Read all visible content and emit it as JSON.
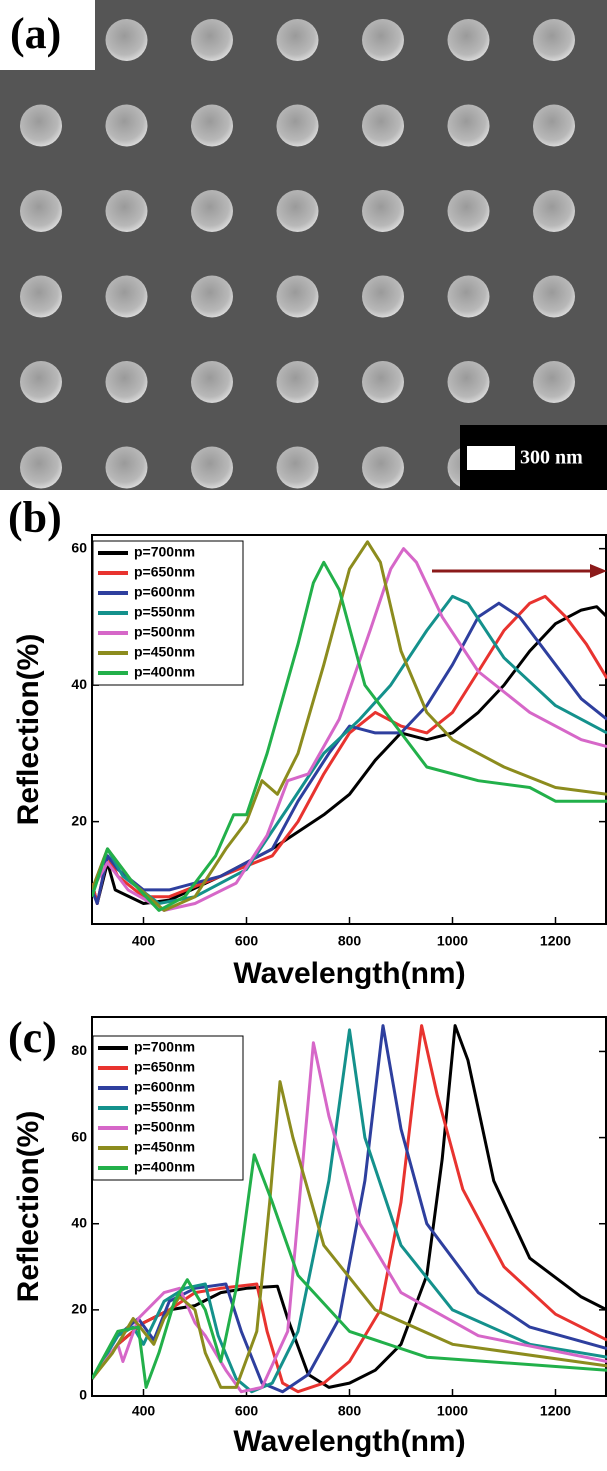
{
  "panel_a": {
    "label": "(a)",
    "scale_bar": "300 nm"
  },
  "chart_data": [
    {
      "type": "line",
      "panel_label": "(b)",
      "xlabel": "Wavelength(nm)",
      "ylabel": "Reflection(%)",
      "xlim": [
        300,
        1300
      ],
      "ylim": [
        5,
        62
      ],
      "xticks": [
        400,
        600,
        800,
        1000,
        1200
      ],
      "yticks": [
        20,
        40,
        60
      ],
      "series": [
        {
          "name": "p=700nm",
          "color": "#000000",
          "x": [
            300,
            310,
            330,
            345,
            400,
            450,
            550,
            650,
            750,
            800,
            850,
            900,
            950,
            1000,
            1050,
            1100,
            1150,
            1200,
            1250,
            1280,
            1300
          ],
          "values": [
            11,
            8,
            14,
            10,
            8,
            8.5,
            12,
            16,
            21,
            24,
            29,
            33,
            32,
            33,
            36,
            40,
            45,
            49,
            51,
            51.5,
            50
          ]
        },
        {
          "name": "p=650nm",
          "color": "#e8332f",
          "x": [
            300,
            310,
            330,
            350,
            400,
            450,
            550,
            650,
            700,
            750,
            800,
            850,
            900,
            950,
            1000,
            1050,
            1100,
            1150,
            1180,
            1220,
            1260,
            1300
          ],
          "values": [
            11,
            8,
            15,
            12,
            9,
            9,
            12,
            15,
            20,
            27,
            33,
            36,
            34,
            33,
            36,
            42,
            48,
            52,
            53,
            50,
            46,
            41
          ]
        },
        {
          "name": "p=600nm",
          "color": "#2e3f9e",
          "x": [
            300,
            310,
            330,
            350,
            400,
            450,
            550,
            650,
            700,
            760,
            800,
            850,
            900,
            950,
            1000,
            1050,
            1090,
            1130,
            1200,
            1250,
            1300
          ],
          "values": [
            10,
            8,
            15,
            13,
            10,
            10,
            12,
            16,
            23,
            30,
            34,
            33,
            33,
            37,
            43,
            50,
            52,
            50,
            43,
            38,
            35
          ]
        },
        {
          "name": "p=550nm",
          "color": "#14918c",
          "x": [
            300,
            330,
            360,
            430,
            500,
            600,
            680,
            750,
            820,
            880,
            950,
            1000,
            1030,
            1100,
            1200,
            1300
          ],
          "values": [
            10,
            16,
            12,
            8,
            9,
            13,
            22,
            30,
            35,
            40,
            48,
            53,
            52,
            44,
            37,
            33
          ]
        },
        {
          "name": "p=500nm",
          "color": "#d667c8",
          "x": [
            300,
            330,
            370,
            440,
            500,
            580,
            640,
            680,
            720,
            780,
            840,
            880,
            905,
            930,
            980,
            1050,
            1150,
            1250,
            1300
          ],
          "values": [
            10,
            14,
            10,
            7,
            8,
            11,
            18,
            26,
            27,
            35,
            48,
            57,
            60,
            58,
            50,
            42,
            36,
            32,
            31
          ]
        },
        {
          "name": "p=450nm",
          "color": "#8c8c1e",
          "x": [
            300,
            330,
            380,
            440,
            500,
            560,
            600,
            630,
            660,
            700,
            750,
            800,
            835,
            860,
            900,
            950,
            1000,
            1100,
            1200,
            1300
          ],
          "values": [
            10,
            16,
            11,
            7,
            9,
            16,
            20,
            26,
            24,
            30,
            43,
            57,
            61,
            58,
            45,
            36,
            32,
            28,
            25,
            24
          ]
        },
        {
          "name": "p=400nm",
          "color": "#22b04a",
          "x": [
            300,
            330,
            380,
            430,
            480,
            540,
            575,
            600,
            640,
            700,
            730,
            750,
            780,
            830,
            900,
            950,
            1050,
            1150,
            1200,
            1300
          ],
          "values": [
            9,
            16,
            11,
            7,
            9,
            15,
            21,
            21,
            30,
            46,
            55,
            58,
            54,
            40,
            33,
            28,
            26,
            25,
            23,
            23
          ]
        }
      ]
    },
    {
      "type": "line",
      "panel_label": "(c)",
      "xlabel": "Wavelength(nm)",
      "ylabel": "Reflection(%)",
      "xlim": [
        300,
        1300
      ],
      "ylim": [
        0,
        88
      ],
      "xticks": [
        400,
        600,
        800,
        1000,
        1200
      ],
      "yticks": [
        0,
        20,
        40,
        60,
        80
      ],
      "series": [
        {
          "name": "p=700nm",
          "color": "#000000",
          "x": [
            300,
            350,
            400,
            450,
            500,
            550,
            600,
            660,
            680,
            720,
            760,
            800,
            850,
            900,
            950,
            980,
            1005,
            1030,
            1080,
            1150,
            1250,
            1300
          ],
          "values": [
            4,
            12,
            17,
            20,
            21,
            24,
            25,
            25.5,
            18,
            5,
            2,
            3,
            6,
            12,
            28,
            55,
            86,
            78,
            50,
            32,
            23,
            20
          ]
        },
        {
          "name": "p=650nm",
          "color": "#e8332f",
          "x": [
            300,
            350,
            400,
            450,
            500,
            550,
            620,
            640,
            670,
            700,
            750,
            800,
            860,
            900,
            940,
            970,
            1020,
            1100,
            1200,
            1300
          ],
          "values": [
            4,
            12,
            17,
            20,
            24,
            25,
            26,
            15,
            3,
            1,
            3,
            8,
            20,
            45,
            86,
            70,
            48,
            30,
            19,
            13
          ]
        },
        {
          "name": "p=600nm",
          "color": "#2e3f9e",
          "x": [
            300,
            350,
            390,
            420,
            450,
            500,
            560,
            590,
            630,
            670,
            720,
            780,
            830,
            865,
            900,
            950,
            1050,
            1150,
            1300
          ],
          "values": [
            4,
            14,
            18,
            13,
            22,
            25,
            26,
            15,
            3,
            1,
            5,
            18,
            50,
            86,
            62,
            40,
            24,
            16,
            11
          ]
        },
        {
          "name": "p=550nm",
          "color": "#14918c",
          "x": [
            300,
            350,
            380,
            400,
            440,
            480,
            520,
            545,
            580,
            610,
            650,
            700,
            760,
            800,
            830,
            900,
            1000,
            1150,
            1300
          ],
          "values": [
            4,
            14,
            16,
            12,
            22,
            25,
            26,
            14,
            4,
            1,
            3,
            15,
            50,
            85,
            60,
            35,
            20,
            12,
            9
          ]
        },
        {
          "name": "p=500nm",
          "color": "#d667c8",
          "x": [
            300,
            350,
            360,
            390,
            440,
            470,
            500,
            520,
            560,
            590,
            630,
            680,
            710,
            730,
            760,
            820,
            900,
            1050,
            1300
          ],
          "values": [
            4,
            12,
            8,
            18,
            24,
            25,
            17,
            14,
            6,
            1,
            2,
            15,
            55,
            82,
            65,
            40,
            24,
            14,
            8
          ]
        },
        {
          "name": "p=450nm",
          "color": "#8c8c1e",
          "x": [
            300,
            340,
            380,
            420,
            440,
            470,
            500,
            520,
            550,
            580,
            620,
            645,
            665,
            690,
            750,
            850,
            1000,
            1300
          ],
          "values": [
            4,
            10,
            18,
            12,
            18,
            23,
            20,
            10,
            2,
            2,
            15,
            45,
            73,
            60,
            35,
            20,
            12,
            7
          ]
        },
        {
          "name": "p=400nm",
          "color": "#22b04a",
          "x": [
            300,
            350,
            390,
            405,
            430,
            460,
            485,
            520,
            550,
            580,
            615,
            650,
            700,
            800,
            950,
            1300
          ],
          "values": [
            4,
            15,
            16,
            2,
            10,
            22,
            27,
            20,
            8,
            25,
            56,
            45,
            28,
            15,
            9,
            6
          ]
        }
      ]
    }
  ]
}
